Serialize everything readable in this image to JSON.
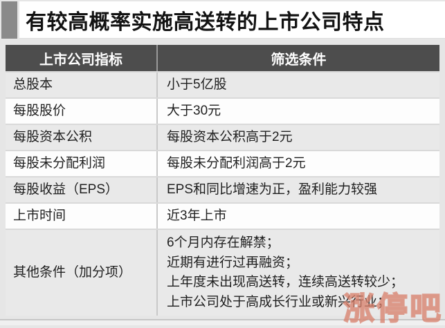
{
  "title": "有较高概率实施高送转的上市公司特点",
  "colors": {
    "accent_bar": "#8a8a8a",
    "header_bg": "#4d4d4d",
    "header_text": "#ffffff",
    "row_alt_bg": "#e9e9e9",
    "row_plain_bg": "#fdfdfd",
    "body_text": "#1f1f1f",
    "watermark": "#d57863"
  },
  "table": {
    "headers": [
      "上市公司指标",
      "筛选条件"
    ],
    "rows": [
      {
        "indicator": "总股本",
        "condition": "小于5亿股"
      },
      {
        "indicator": "每股股价",
        "condition": "大于30元"
      },
      {
        "indicator": "每股资本公积",
        "condition": "每股资本公积高于2元"
      },
      {
        "indicator": "每股未分配利润",
        "condition": "每股未分配利润高于2元"
      },
      {
        "indicator": "每股收益（EPS）",
        "condition": "EPS和同比增速为正，盈利能力较强"
      },
      {
        "indicator": "上市时间",
        "condition": "近3年上市"
      },
      {
        "indicator": "其他条件（加分项）",
        "condition": "6个月内存在解禁；\n近期有进行过再融资；\n上年度未出现高送转，连续高送转较少；\n上市公司处于高成长行业或新兴行业；"
      }
    ]
  },
  "watermark_text": "涨停吧"
}
